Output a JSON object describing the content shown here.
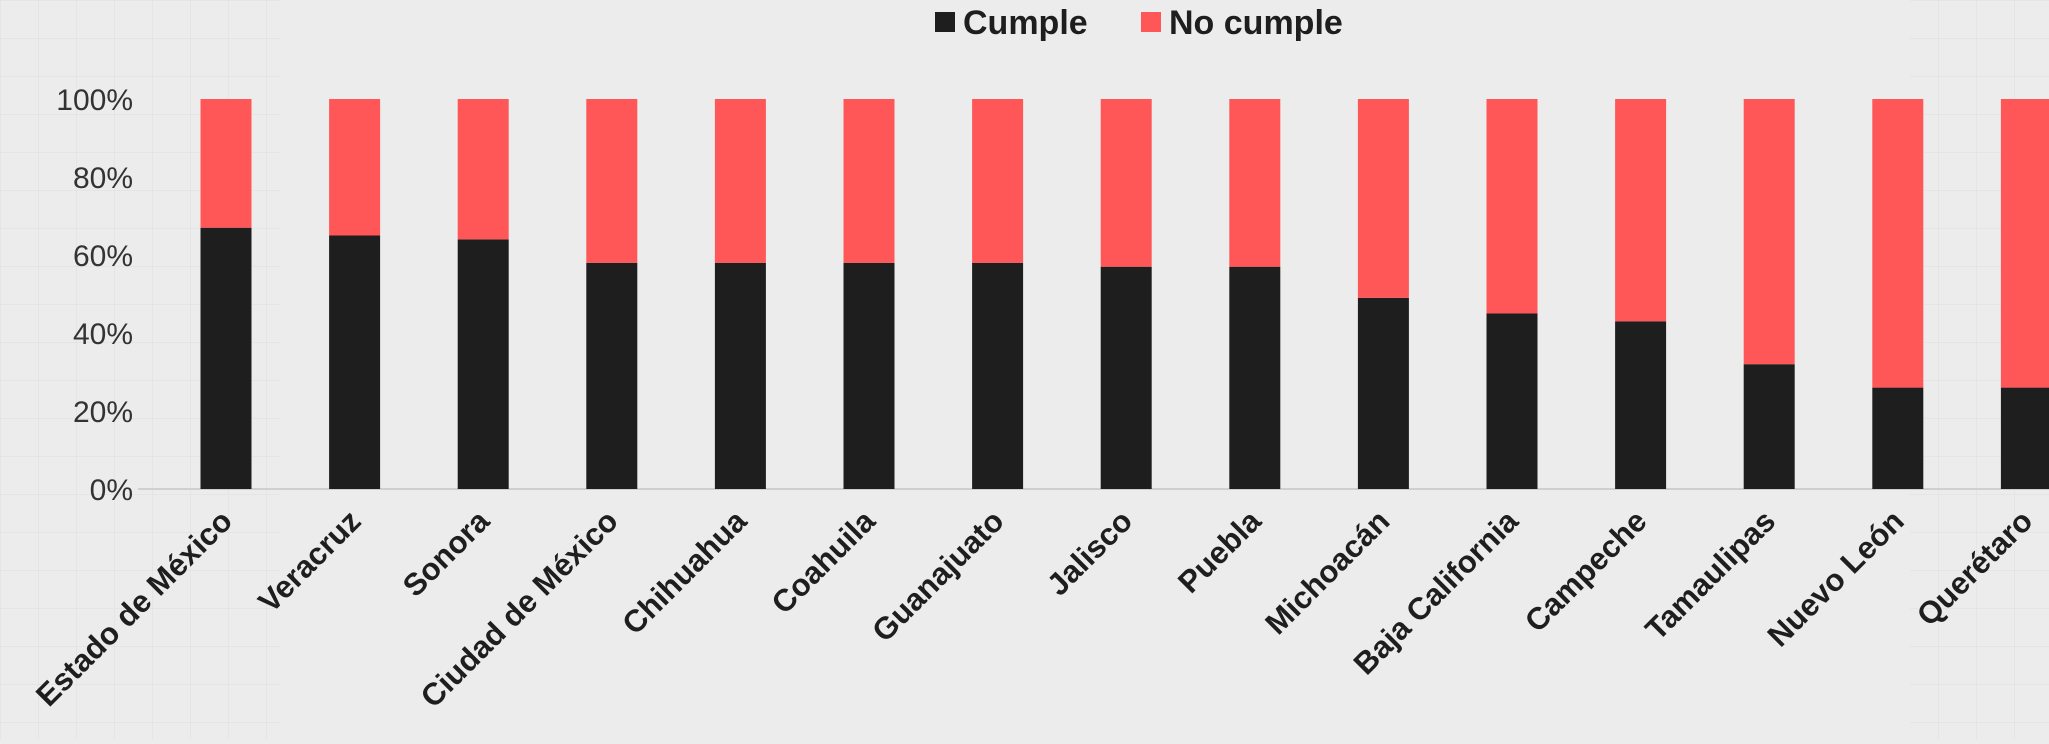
{
  "chart_data": {
    "type": "bar",
    "stacked": true,
    "categories": [
      "Estado de México",
      "Veracruz",
      "Sonora",
      "Ciudad de México",
      "Chihuahua",
      "Coahuila",
      "Guanajuato",
      "Jalisco",
      "Puebla",
      "Michoacán",
      "Baja California",
      "Campeche",
      "Tamaulipas",
      "Nuevo León",
      "Querétaro"
    ],
    "series": [
      {
        "name": "Cumple",
        "color": "#1e1e1e",
        "values": [
          67,
          65,
          64,
          58,
          58,
          58,
          58,
          57,
          57,
          49,
          45,
          43,
          32,
          26,
          26
        ]
      },
      {
        "name": "No cumple",
        "color": "#ff5757",
        "values": [
          33,
          35,
          36,
          42,
          42,
          42,
          42,
          43,
          43,
          51,
          55,
          57,
          68,
          74,
          74
        ]
      }
    ],
    "y_ticks": [
      "0%",
      "20%",
      "40%",
      "60%",
      "80%",
      "100%"
    ],
    "ylim": [
      0,
      100
    ],
    "grid": false,
    "legend_position": "top-center",
    "title": "",
    "xlabel": "",
    "ylabel": ""
  }
}
